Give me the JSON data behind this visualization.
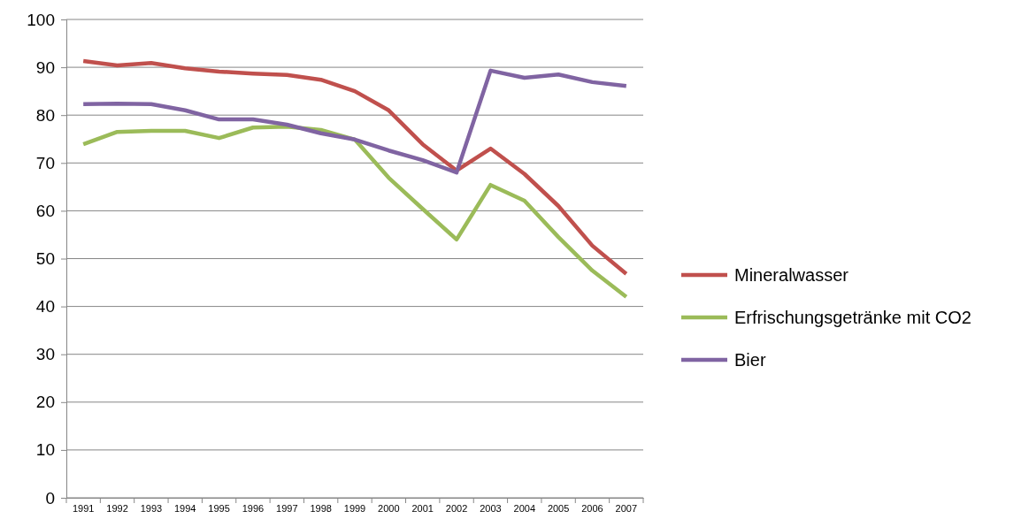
{
  "chart_data": {
    "type": "line",
    "categories": [
      "1991",
      "1992",
      "1993",
      "1994",
      "1995",
      "1996",
      "1997",
      "1998",
      "1999",
      "2000",
      "2001",
      "2002",
      "2003",
      "2004",
      "2005",
      "2006",
      "2007"
    ],
    "series": [
      {
        "name": "Mineralwasser",
        "color": "#c0504d",
        "values": [
          91.3,
          90.4,
          90.9,
          89.8,
          89.1,
          88.7,
          88.4,
          87.4,
          85.0,
          81.0,
          73.9,
          68.4,
          73.0,
          67.7,
          61.0,
          52.7,
          46.8
        ]
      },
      {
        "name": "Erfrischungsgetränke mit CO2",
        "color": "#9bbb59",
        "values": [
          73.9,
          76.5,
          76.7,
          76.7,
          75.2,
          77.4,
          77.6,
          76.9,
          74.9,
          66.9,
          60.4,
          54.0,
          65.4,
          62.1,
          54.5,
          47.5,
          42.0
        ]
      },
      {
        "name": "Bier",
        "color": "#8064a2",
        "values": [
          82.3,
          82.4,
          82.3,
          81.0,
          79.1,
          79.1,
          78.0,
          76.2,
          74.9,
          72.6,
          70.6,
          68.0,
          89.3,
          87.8,
          88.5,
          86.9,
          86.1
        ]
      }
    ],
    "ylim": [
      0,
      100
    ],
    "yticks": [
      0,
      10,
      20,
      30,
      40,
      50,
      60,
      70,
      80,
      90,
      100
    ],
    "grid": "y",
    "legend": "right",
    "marker": "none",
    "line_style": "solid"
  }
}
